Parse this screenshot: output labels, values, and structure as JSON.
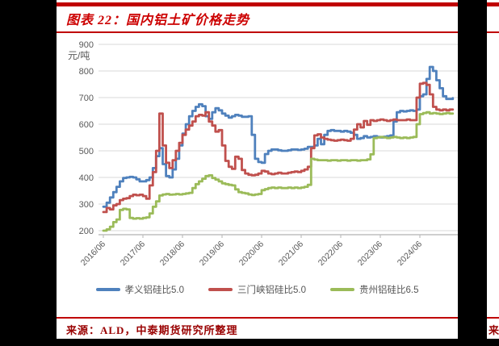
{
  "header": {
    "title": "图表 22：国内铝土矿价格走势"
  },
  "footer": {
    "source": "来源：ALD，中泰期货研究所整理"
  },
  "sliver": {
    "fragment": "来"
  },
  "colors": {
    "accent_red": "#c00000",
    "title_red": "#cc0000",
    "source_red": "#990000",
    "grid": "#d9d9d9",
    "axis": "#bfbfbf",
    "tick_label": "#595959"
  },
  "chart_data": {
    "type": "line",
    "title": "图表 22：国内铝土矿价格走势",
    "y_unit": "元/吨",
    "ylim": [
      200,
      900
    ],
    "y_tick_labels": [
      "900",
      "800",
      "700",
      "600",
      "500",
      "400",
      "300",
      "200"
    ],
    "y_tick_values": [
      900,
      800,
      700,
      600,
      500,
      400,
      300,
      200
    ],
    "x_tick_labels": [
      "2016/06",
      "2017/06",
      "2018/06",
      "2019/06",
      "2020/06",
      "2021/06",
      "2022/06",
      "2023/06",
      "2024/06"
    ],
    "x_start": "2016/06",
    "x_interval": "monthly",
    "grid": true,
    "legend_position": "bottom",
    "series": [
      {
        "name": "孝义铝硅比5.0",
        "color": "#4f81bd",
        "values": [
          290,
          305,
          325,
          345,
          365,
          385,
          398,
          400,
          402,
          400,
          393,
          385,
          385,
          390,
          400,
          435,
          480,
          510,
          450,
          405,
          400,
          430,
          470,
          520,
          565,
          600,
          630,
          650,
          665,
          675,
          668,
          630,
          620,
          645,
          660,
          652,
          640,
          632,
          625,
          630,
          635,
          632,
          628,
          628,
          630,
          560,
          470,
          458,
          455,
          488,
          500,
          505,
          505,
          502,
          500,
          500,
          502,
          505,
          505,
          503,
          505,
          508,
          515,
          515,
          520,
          545,
          525,
          560,
          575,
          578,
          575,
          575,
          572,
          575,
          572,
          568,
          560,
          545,
          548,
          555,
          550,
          552,
          555,
          552,
          550,
          553,
          555,
          558,
          610,
          645,
          650,
          648,
          650,
          652,
          650,
          655,
          705,
          712,
          770,
          815,
          800,
          765,
          735,
          705,
          695,
          695,
          698
        ]
      },
      {
        "name": "三门峡铝硅比5.0",
        "color": "#c0504d",
        "values": [
          270,
          285,
          280,
          295,
          300,
          315,
          320,
          322,
          330,
          335,
          333,
          335,
          330,
          320,
          370,
          420,
          500,
          640,
          520,
          455,
          435,
          465,
          500,
          530,
          560,
          580,
          595,
          610,
          630,
          635,
          632,
          645,
          610,
          595,
          572,
          578,
          520,
          462,
          440,
          432,
          478,
          470,
          428,
          415,
          410,
          408,
          410,
          415,
          425,
          422,
          415,
          412,
          415,
          418,
          415,
          415,
          418,
          420,
          422,
          420,
          425,
          430,
          440,
          510,
          558,
          562,
          550,
          545,
          542,
          540,
          538,
          540,
          542,
          540,
          538,
          545,
          580,
          600,
          588,
          612,
          598,
          615,
          612,
          615,
          618,
          615,
          612,
          615,
          618,
          615,
          615,
          615,
          618,
          615,
          615,
          700,
          752,
          755,
          748,
          712,
          665,
          655,
          652,
          655,
          652,
          655,
          655
        ]
      },
      {
        "name": "贵州铝硅比6.5",
        "color": "#9bbb59",
        "values": [
          200,
          205,
          215,
          232,
          242,
          278,
          282,
          280,
          248,
          245,
          247,
          245,
          248,
          250,
          265,
          290,
          310,
          332,
          336,
          338,
          335,
          336,
          338,
          336,
          338,
          340,
          342,
          360,
          375,
          385,
          395,
          405,
          408,
          398,
          392,
          385,
          378,
          375,
          372,
          370,
          355,
          345,
          342,
          340,
          336,
          334,
          336,
          338,
          352,
          356,
          360,
          362,
          360,
          362,
          360,
          360,
          362,
          360,
          362,
          360,
          362,
          365,
          372,
          470,
          467,
          465,
          465,
          465,
          463,
          465,
          465,
          463,
          465,
          465,
          463,
          465,
          465,
          463,
          465,
          465,
          468,
          487,
          548,
          550,
          552,
          550,
          548,
          550,
          552,
          550,
          548,
          550,
          548,
          550,
          552,
          600,
          638,
          642,
          645,
          640,
          642,
          640,
          638,
          640,
          642,
          640,
          640
        ]
      }
    ]
  }
}
